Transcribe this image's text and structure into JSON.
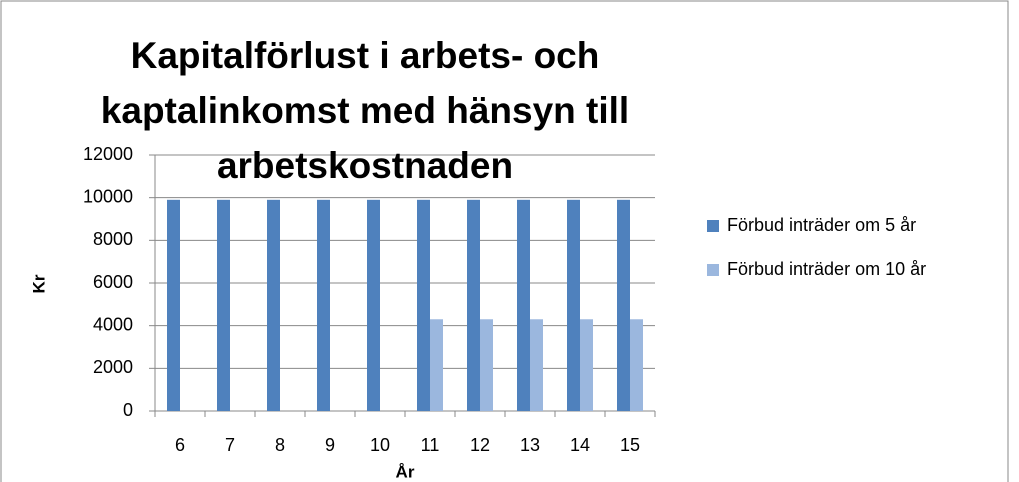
{
  "chart_data": {
    "type": "bar",
    "title": [
      "Kapitalförlust i arbets- och",
      "kaptalinkomst  med hänsyn till",
      "arbetskostnaden"
    ],
    "x_label": "År",
    "y_label": "Kr",
    "categories": [
      "6",
      "7",
      "8",
      "9",
      "10",
      "11",
      "12",
      "13",
      "14",
      "15"
    ],
    "series": [
      {
        "name": "Förbud inträder om 5 år",
        "color": "#4f81bd",
        "values": [
          9900,
          9900,
          9900,
          9900,
          9900,
          9900,
          9900,
          9900,
          9900,
          9900
        ]
      },
      {
        "name": "Förbud inträder om 10 år",
        "color": "#9bb7de",
        "values": [
          0,
          0,
          0,
          0,
          0,
          4300,
          4300,
          4300,
          4300,
          4300
        ]
      }
    ],
    "ylim": [
      0,
      12000
    ],
    "yticks": [
      0,
      2000,
      4000,
      6000,
      8000,
      10000,
      12000
    ],
    "grid": true,
    "legend": "right"
  }
}
